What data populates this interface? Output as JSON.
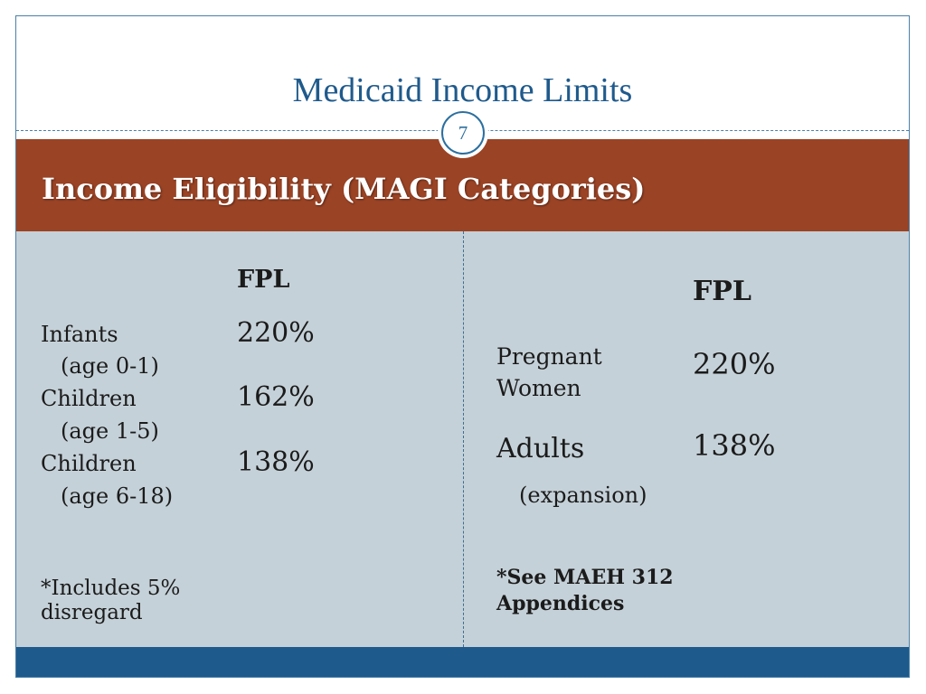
{
  "title": "Medicaid Income Limits",
  "slide_number": "7",
  "header": "Income Eligibility (MAGI Categories)",
  "left": {
    "fpl_label": "FPL",
    "rows": [
      {
        "label": "Infants",
        "sub": "(age 0-1)",
        "value": "220%"
      },
      {
        "label": "Children",
        "sub": "(age 1-5)",
        "value": "162%"
      },
      {
        "label": "Children",
        "sub": "(age 6-18)",
        "value": "138%"
      }
    ],
    "note_line1": "*Includes 5%",
    "note_line2": "disregard"
  },
  "right": {
    "fpl_label": "FPL",
    "pregnant_line1": "Pregnant",
    "pregnant_line2": "Women",
    "pregnant_value": "220%",
    "adults_label": "Adults",
    "adults_sub": "(expansion)",
    "adults_value": "138%",
    "note_line1": "*See MAEH 312",
    "note_line2": "Appendices"
  },
  "colors": {
    "title": "#1f5a8c",
    "header_band": "#9b4325",
    "content_bg": "#c5d1d8",
    "footer_band": "#1f5a8c"
  }
}
